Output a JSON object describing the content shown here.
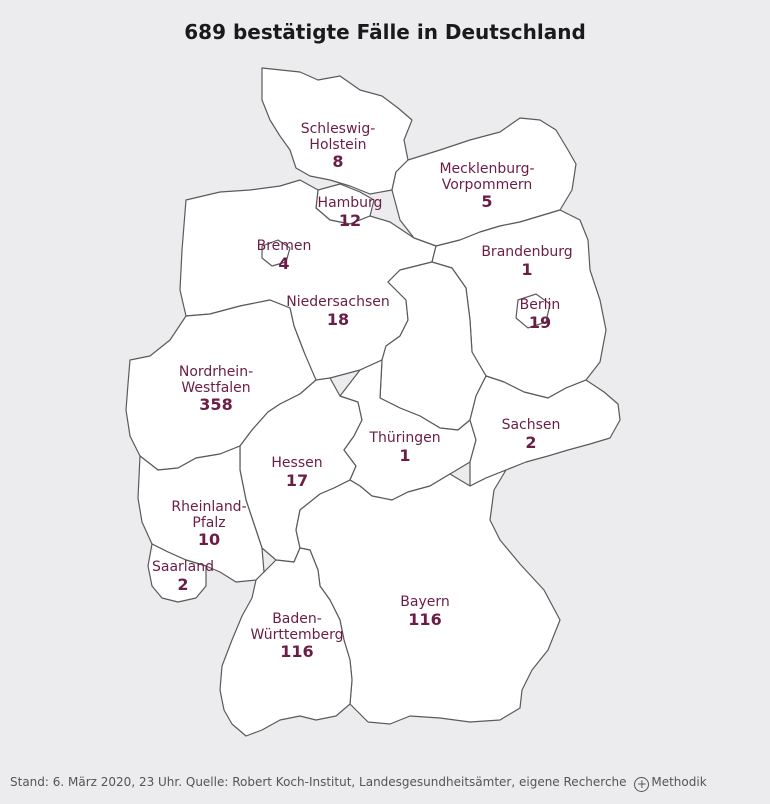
{
  "title": "689 bestätigte Fälle in Deutschland",
  "states": [
    {
      "id": "sh",
      "name_lines": [
        "Schleswig-",
        "Holstein"
      ],
      "count": "8"
    },
    {
      "id": "hh",
      "name_lines": [
        "Hamburg"
      ],
      "count": "12"
    },
    {
      "id": "mv",
      "name_lines": [
        "Mecklenburg-",
        "Vorpommern"
      ],
      "count": "5"
    },
    {
      "id": "hb",
      "name_lines": [
        "Bremen"
      ],
      "count": "4"
    },
    {
      "id": "bb",
      "name_lines": [
        "Brandenburg"
      ],
      "count": "1"
    },
    {
      "id": "be",
      "name_lines": [
        "Berlin"
      ],
      "count": "19"
    },
    {
      "id": "ni",
      "name_lines": [
        "Niedersachsen"
      ],
      "count": "18"
    },
    {
      "id": "nw",
      "name_lines": [
        "Nordrhein-",
        "Westfalen"
      ],
      "count": "358"
    },
    {
      "id": "sn",
      "name_lines": [
        "Sachsen"
      ],
      "count": "2"
    },
    {
      "id": "th",
      "name_lines": [
        "Thüringen"
      ],
      "count": "1"
    },
    {
      "id": "he",
      "name_lines": [
        "Hessen"
      ],
      "count": "17"
    },
    {
      "id": "rp",
      "name_lines": [
        "Rheinland-",
        "Pfalz"
      ],
      "count": "10"
    },
    {
      "id": "sl",
      "name_lines": [
        "Saarland"
      ],
      "count": "2"
    },
    {
      "id": "by",
      "name_lines": [
        "Bayern"
      ],
      "count": "116"
    },
    {
      "id": "bw",
      "name_lines": [
        "Baden-",
        "Württemberg"
      ],
      "count": "116"
    }
  ],
  "footer": {
    "source": "Stand: 6. März 2020, 23 Uhr. Quelle: Robert Koch-Institut, Landesgesundheitsämter, eigene Recherche",
    "plus_symbol": "+",
    "method_label": "Methodik"
  },
  "colors": {
    "label": "#6b1d45",
    "background": "#ececee",
    "fill": "#ffffff",
    "border": "#5a5a5a"
  }
}
